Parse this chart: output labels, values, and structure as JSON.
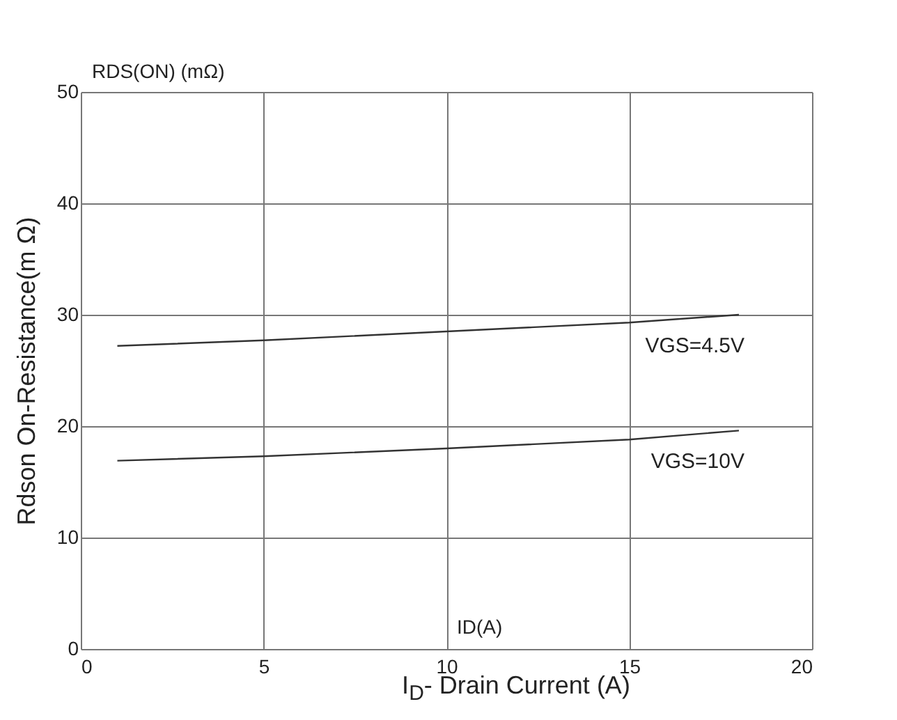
{
  "chart_data": {
    "type": "line",
    "xlabel": "I$_{D}$- Drain Current (A)",
    "ylabel": "Rdson On-Resistance(m Ω)",
    "annotations": [
      "RDS(ON) (mΩ)",
      "ID(A)"
    ],
    "x": [
      1,
      5,
      10,
      15,
      18
    ],
    "series": [
      {
        "name": "VGS=4.5V",
        "color": "#333333",
        "values": [
          27.2,
          27.7,
          28.5,
          29.3,
          30.0
        ]
      },
      {
        "name": "VGS=10V",
        "color": "#333333",
        "values": [
          16.9,
          17.3,
          18.0,
          18.8,
          19.6
        ]
      }
    ],
    "xlim": [
      0,
      20
    ],
    "ylim": [
      0,
      50
    ],
    "xticks": [
      0,
      5,
      10,
      15,
      20
    ],
    "yticks": [
      0,
      10,
      20,
      30,
      40,
      50
    ],
    "grid": true,
    "marker": "none",
    "line_style": "solid"
  }
}
